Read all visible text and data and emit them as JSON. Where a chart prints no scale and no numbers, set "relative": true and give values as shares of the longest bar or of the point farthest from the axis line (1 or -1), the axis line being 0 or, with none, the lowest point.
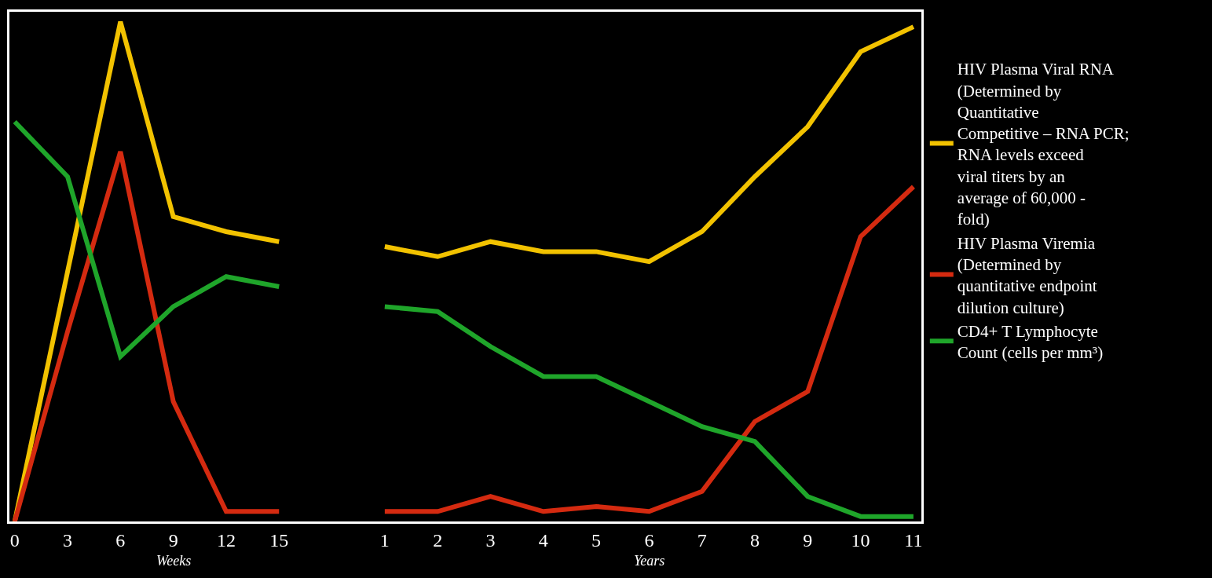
{
  "chart_data": {
    "type": "line",
    "relative": true,
    "tick_labels": "x",
    "grid": false,
    "legend": "right",
    "line_style": "solid",
    "marker": "none",
    "categories": [
      "0",
      "3",
      "6",
      "9",
      "12",
      "15",
      null,
      "1",
      "2",
      "3",
      "4",
      "5",
      "6",
      "7",
      "8",
      "9",
      "10",
      "11"
    ],
    "annotations": [
      "Weeks",
      "Years"
    ],
    "series": [
      {
        "name": "HIV Plasma Viral RNA (Determined by Quantitative Competitive – RNA PCR; RNA levels exceed viral titers by an average of 60,000 - fold)",
        "color": "#f2c200",
        "values": [
          0,
          0.5,
          1.0,
          0.61,
          0.58,
          0.56,
          null,
          0.55,
          0.53,
          0.56,
          0.54,
          0.54,
          0.52,
          0.58,
          0.69,
          0.79,
          0.94,
          0.99
        ]
      },
      {
        "name": "HIV Plasma Viremia (Determined by quantitative endpoint dilution culture)",
        "color": "#d42a10",
        "values": [
          0,
          0.38,
          0.74,
          0.24,
          0.02,
          0.02,
          null,
          0.02,
          0.02,
          0.05,
          0.02,
          0.03,
          0.02,
          0.06,
          0.2,
          0.26,
          0.57,
          0.67
        ]
      },
      {
        "name": "CD4+ T Lymphocyte Count (cells per mm³)",
        "color": "#1fa52a",
        "values": [
          0.8,
          0.69,
          0.33,
          0.43,
          0.49,
          0.47,
          null,
          0.43,
          0.42,
          0.35,
          0.29,
          0.29,
          0.24,
          0.19,
          0.16,
          0.05,
          0.01,
          0.01
        ]
      }
    ]
  }
}
